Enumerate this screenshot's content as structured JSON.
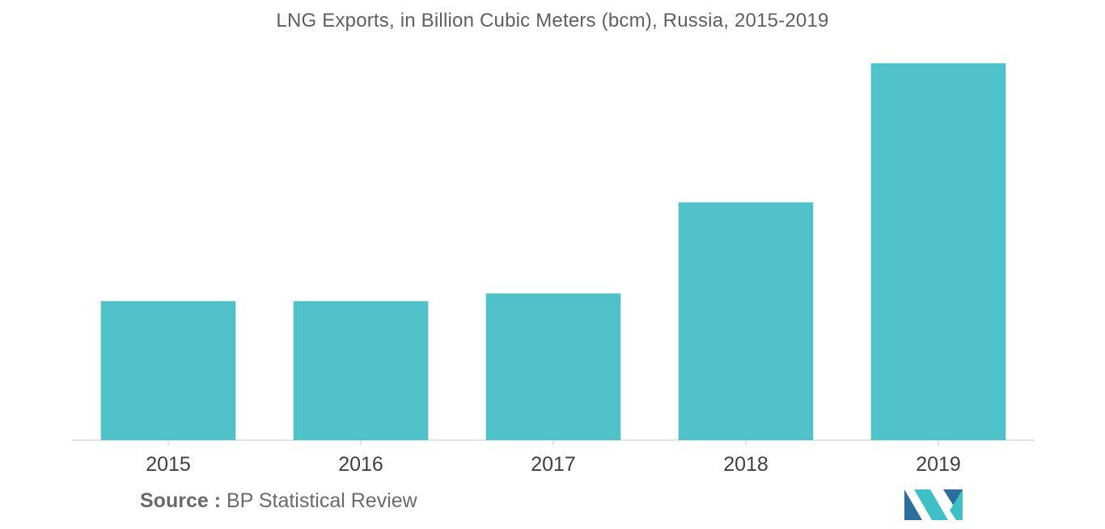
{
  "chart_data": {
    "type": "bar",
    "title": "LNG Exports, in Billion Cubic Meters (bcm), Russia, 2015-2019",
    "categories": [
      "2015",
      "2016",
      "2017",
      "2018",
      "2019"
    ],
    "values": [
      14.5,
      14.5,
      15.3,
      24.8,
      39.3
    ],
    "xlabel": "",
    "ylabel": "",
    "ylim": [
      0,
      40
    ],
    "grid": false,
    "legend": "none",
    "bar_color": "#4fc1c9"
  },
  "source": {
    "key": "Source :",
    "text": "BP Statistical Review"
  },
  "colors": {
    "bar": "#4fc1c9",
    "axis": "#e3e3e3",
    "logo_dark": "#2d6e9c",
    "logo_light": "#3fbfc6"
  },
  "logo_icon": "mordor-intelligence-logo"
}
